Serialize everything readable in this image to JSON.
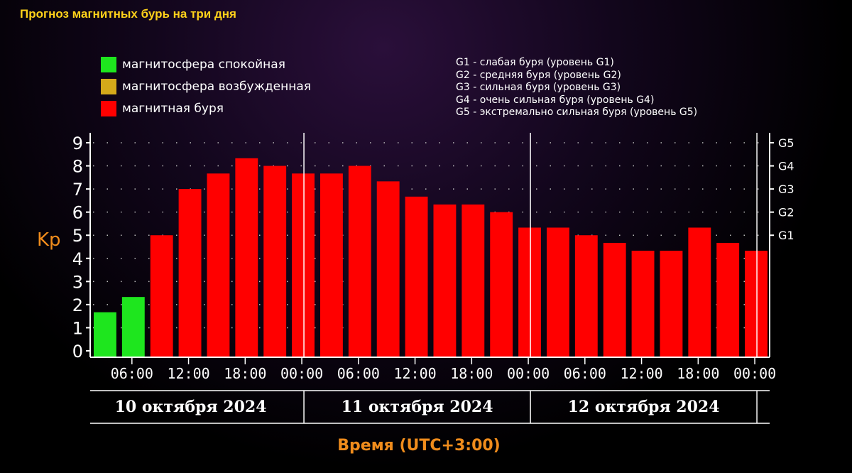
{
  "title": "Прогноз магнитных бурь на три дня",
  "legend": [
    {
      "label": "магнитосфера спокойная",
      "color": "#1ee61e"
    },
    {
      "label": "магнитосфера возбужденная",
      "color": "#d4a91a"
    },
    {
      "label": "магнитная буря",
      "color": "#ff0000"
    }
  ],
  "g_scale_legend": [
    "G1 - слабая буря (уровень G1)",
    "G2 - средняя буря (уровень G2)",
    "G3 - сильная буря (уровень G3)",
    "G4 - очень сильная буря (уровень G4)",
    "G5 - экстремально сильная буря (уровень G5)"
  ],
  "chart_data": {
    "type": "bar",
    "ylabel": "Kp",
    "xlabel": "Время (UTC+3:00)",
    "ylim": [
      0,
      9
    ],
    "y_ticks": [
      "0",
      "1",
      "2",
      "3",
      "4",
      "5",
      "6",
      "7",
      "8",
      "9"
    ],
    "right_ticks": [
      {
        "label": "G1",
        "value": 5
      },
      {
        "label": "G2",
        "value": 6
      },
      {
        "label": "G3",
        "value": 7
      },
      {
        "label": "G4",
        "value": 8
      },
      {
        "label": "G5",
        "value": 9
      }
    ],
    "x_ticks": [
      "06:00",
      "12:00",
      "18:00",
      "00:00",
      "06:00",
      "12:00",
      "18:00",
      "00:00",
      "06:00",
      "12:00",
      "18:00",
      "00:00"
    ],
    "days": [
      "10 октября 2024",
      "11 октября 2024",
      "12 октября 2024"
    ],
    "values": [
      1.67,
      2.33,
      5.0,
      7.0,
      7.67,
      8.33,
      8.0,
      7.67,
      7.67,
      8.0,
      7.33,
      6.67,
      6.33,
      6.33,
      6.0,
      5.33,
      5.33,
      5.0,
      4.67,
      4.33,
      4.33,
      5.33,
      4.67,
      4.33
    ],
    "colors": [
      "#1ee61e",
      "#1ee61e",
      "#ff0000",
      "#ff0000",
      "#ff0000",
      "#ff0000",
      "#ff0000",
      "#ff0000",
      "#ff0000",
      "#ff0000",
      "#ff0000",
      "#ff0000",
      "#ff0000",
      "#ff0000",
      "#ff0000",
      "#ff0000",
      "#ff0000",
      "#ff0000",
      "#ff0000",
      "#ff0000",
      "#ff0000",
      "#ff0000",
      "#ff0000",
      "#ff0000"
    ],
    "grid": true
  }
}
